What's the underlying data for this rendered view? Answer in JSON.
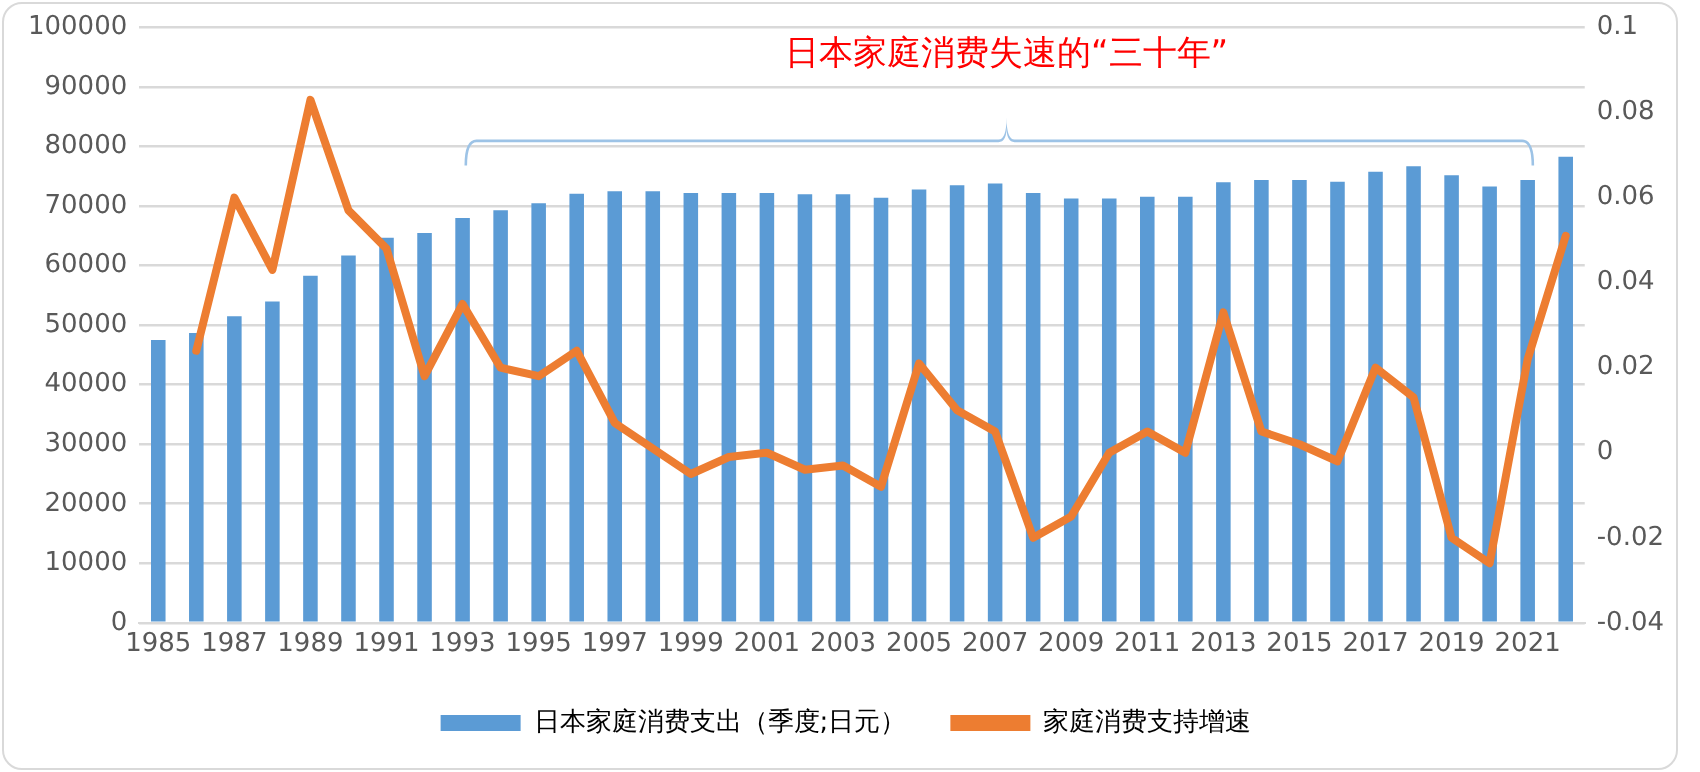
{
  "chart_data": {
    "type": "bar",
    "categories": [
      "1985",
      null,
      "1987",
      null,
      "1989",
      null,
      "1991",
      null,
      "1993",
      null,
      "1995",
      null,
      "1997",
      null,
      "1999",
      null,
      "2001",
      null,
      "2003",
      null,
      "2005",
      null,
      "2007",
      null,
      "2009",
      null,
      "2011",
      null,
      "2013",
      null,
      "2015",
      null,
      "2017",
      null,
      "2019",
      null,
      "2021",
      null
    ],
    "series": [
      {
        "name": "日本家庭消费支出（季度;日元）",
        "color": "#5b9bd5",
        "values": [
          47500,
          48700,
          51500,
          54000,
          58300,
          61700,
          64700,
          65500,
          68000,
          69300,
          70500,
          72100,
          72500,
          72500,
          72200,
          72200,
          72200,
          72000,
          72000,
          71400,
          72800,
          73500,
          73800,
          72200,
          71300,
          71300,
          71600,
          71600,
          74000,
          74400,
          74400,
          74100,
          75800,
          76700,
          75200,
          73300,
          74400,
          78300
        ]
      },
      {
        "name": "家庭消费支持增速",
        "type": "line",
        "axis": "y2",
        "color": "#ed7d31",
        "values": [
          null,
          0.024,
          0.06,
          0.043,
          0.083,
          0.057,
          0.048,
          0.018,
          0.035,
          0.02,
          0.018,
          0.024,
          0.007,
          0.001,
          -0.005,
          -0.001,
          0.0,
          -0.004,
          -0.003,
          -0.008,
          0.021,
          0.01,
          0.005,
          -0.02,
          -0.015,
          0.0,
          0.005,
          0.0,
          0.033,
          0.005,
          0.002,
          -0.002,
          0.02,
          0.013,
          -0.02,
          -0.026,
          0.022,
          0.051
        ]
      }
    ],
    "ylim": [
      0,
      100000
    ],
    "yticks": [
      0,
      10000,
      20000,
      30000,
      40000,
      50000,
      60000,
      70000,
      80000,
      90000,
      100000
    ],
    "y2lim": [
      -0.04,
      0.1
    ],
    "y2ticks": [
      -0.04,
      -0.02,
      0,
      0.02,
      0.04,
      0.06,
      0.08,
      0.1
    ],
    "annotations": [
      "日本家庭消费失速的“三十年”"
    ],
    "grid": "y",
    "legend": "bottom",
    "marker": "none",
    "line_style": "solid"
  }
}
